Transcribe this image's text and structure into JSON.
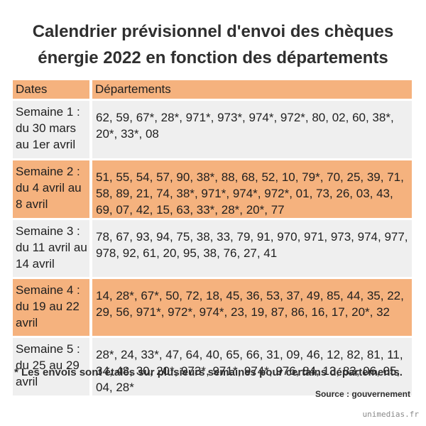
{
  "title": {
    "line1": "Calendrier prévisionnel d'envoi des chèques",
    "line2": "énergie 2022 en fonction des départements"
  },
  "table": {
    "headers": [
      "Dates",
      "Départements"
    ],
    "rows": [
      {
        "week": "Semaine 1 : du 30 mars au 1er avril",
        "departments": "62, 59, 67*, 28*, 971*, 973*, 974*, 972*, 80, 02, 60, 38*, 20*, 33*, 08"
      },
      {
        "week": "Semaine 2 : du 4 avril au 8 avril",
        "departments": "51, 55, 54, 57, 90, 38*, 88, 68, 52, 10, 79*, 70, 25, 39, 71, 58, 89, 21, 74, 38*, 971*, 974*, 972*, 01, 73, 26, 03, 43, 69, 07, 42, 15, 63, 33*, 28*, 20*, 77"
      },
      {
        "week": "Semaine 3 : du 11 avril au 14 avril",
        "departments": "78, 67, 93, 94, 75, 38, 33, 79, 91, 970, 971, 973, 974, 977, 978, 92, 61, 20, 95, 38, 76, 27, 41"
      },
      {
        "week": "Semaine 4 : du 19 au 22 avril",
        "departments": "14, 28*, 67*, 50, 72, 18, 45, 36, 53, 37, 49, 85, 44, 35, 22, 29, 56, 971*, 972*, 974*, 23, 19, 87, 86, 16, 17, 20*, 32"
      },
      {
        "week": "Semaine 5 : du 25 au 29 avril",
        "departments": "28*, 24, 33*, 47, 64, 40, 65, 66, 31, 09, 46, 12, 82, 81, 11, 34, 48, 30, 20*, 973*, 971*, 974*, 976, 84, 13, 83, 06, 05, 04, 28*"
      }
    ]
  },
  "footnote": "* Les envois sont étalés sur plusieurs semaines pour certains départements.",
  "source": "Source : gouvernement",
  "watermark": "unimedias.fr",
  "colors": {
    "orange": "#f5b27e",
    "grey": "#efefef",
    "text": "#2f2f2f"
  }
}
